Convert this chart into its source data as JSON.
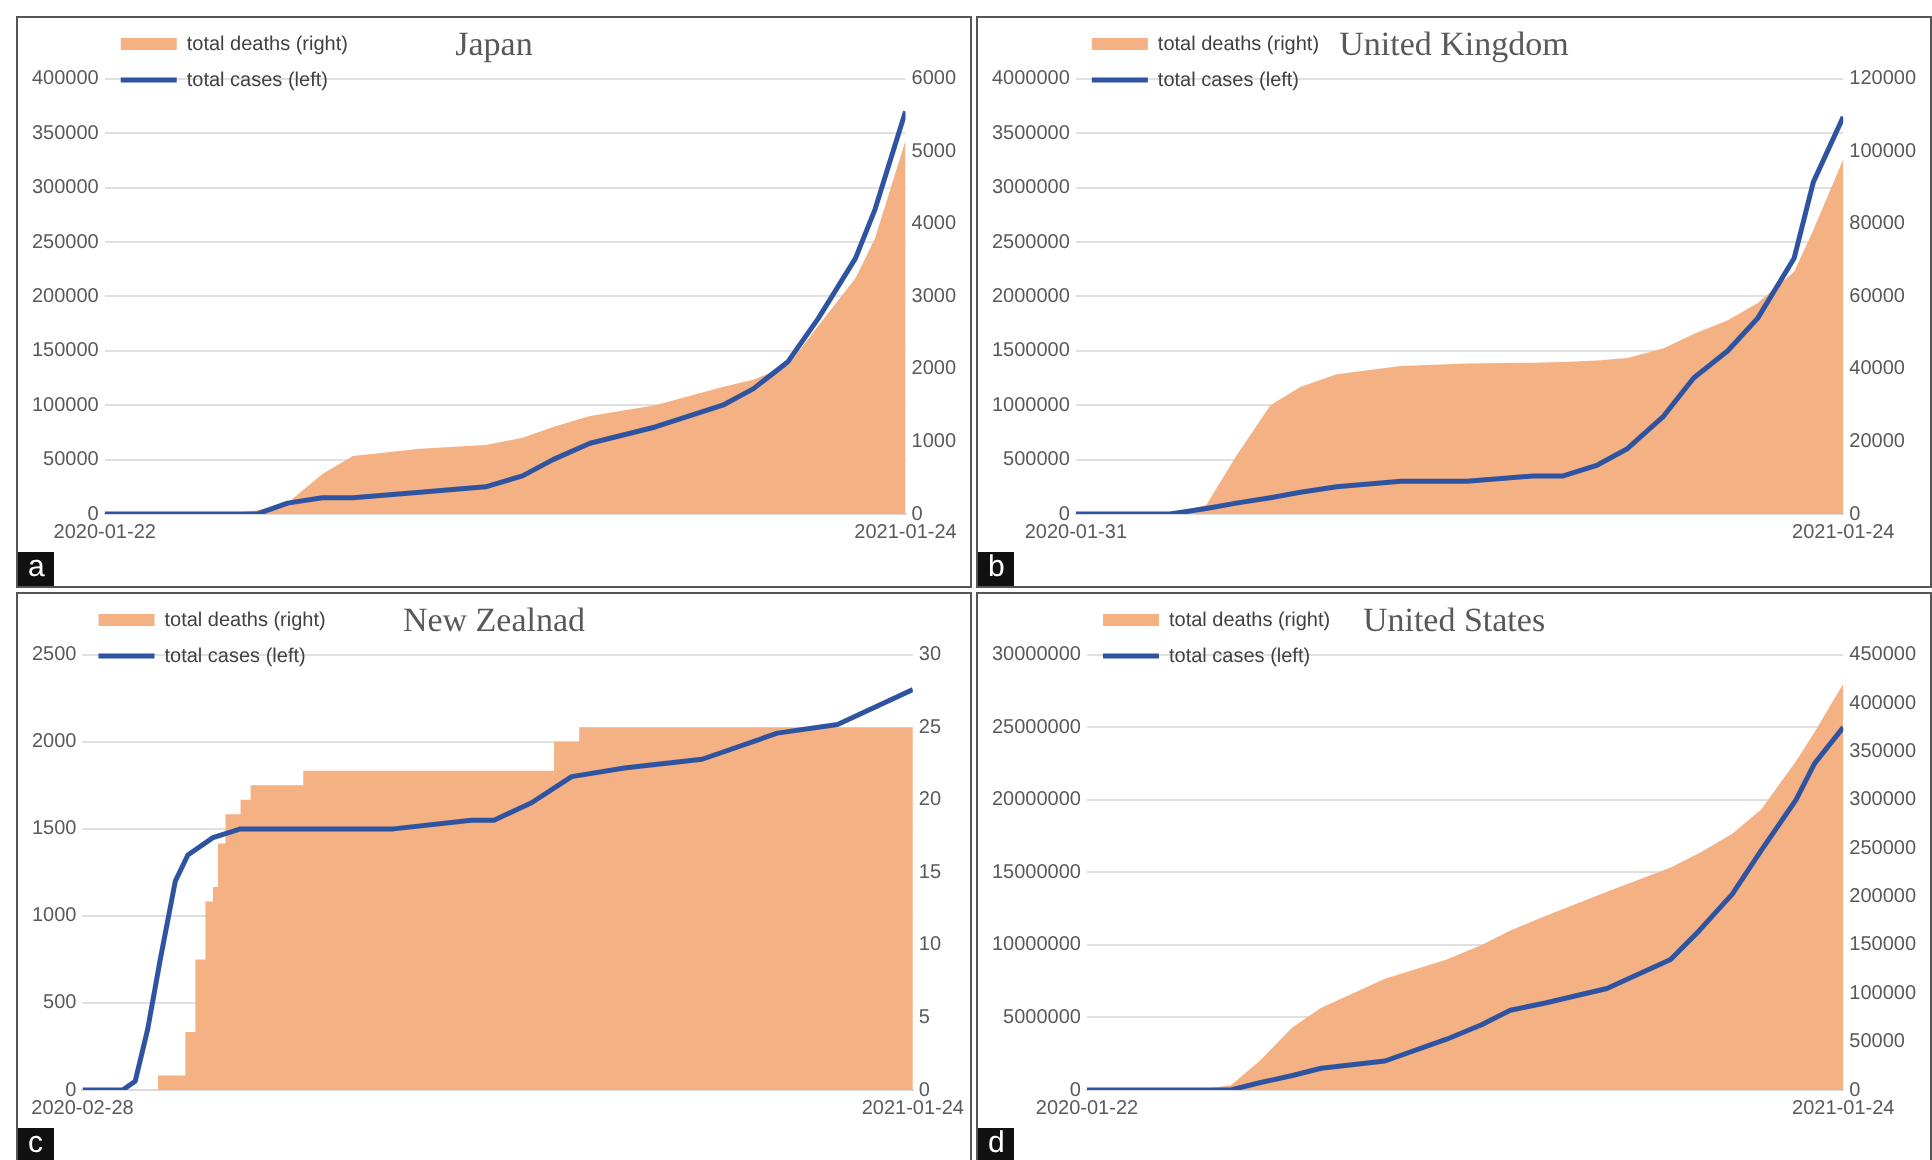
{
  "chart_data": [
    {
      "type": "line",
      "title": "Japan",
      "annotations": [
        "a"
      ],
      "legend": "top left",
      "grid": "y",
      "marker": "none",
      "line_style": "solid",
      "xlim": [
        "2020-01-22",
        "2021-01-24"
      ],
      "xticks": [
        "2020-01-22",
        "2021-01-24"
      ],
      "ylim": [
        0,
        400000
      ],
      "yticks": [
        0,
        50000,
        100000,
        150000,
        200000,
        250000,
        300000,
        350000,
        400000
      ],
      "y2lim": [
        0,
        6000
      ],
      "y2ticks": [
        0,
        1000,
        2000,
        3000,
        4000,
        5000,
        6000
      ],
      "x": [
        "2020-01-22",
        "2020-02-15",
        "2020-03-01",
        "2020-03-15",
        "2020-04-01",
        "2020-04-15",
        "2020-05-01",
        "2020-05-15",
        "2020-06-15",
        "2020-07-15",
        "2020-08-01",
        "2020-08-15",
        "2020-09-01",
        "2020-10-01",
        "2020-11-01",
        "2020-11-15",
        "2020-12-01",
        "2020-12-15",
        "2021-01-01",
        "2021-01-10",
        "2021-01-24"
      ],
      "series": [
        {
          "name": "total deaths (right)",
          "type": "area",
          "axis": "y2",
          "color": "#f4b183",
          "values": [
            0,
            0,
            0,
            0,
            50,
            150,
            550,
            800,
            900,
            950,
            1050,
            1200,
            1350,
            1500,
            1750,
            1850,
            2050,
            2600,
            3250,
            3800,
            5150
          ]
        },
        {
          "name": "total cases (left)",
          "type": "line",
          "color": "#2e54a1",
          "values": [
            0,
            0,
            0,
            0,
            0,
            10000,
            15000,
            15000,
            20000,
            25000,
            35000,
            50000,
            65000,
            80000,
            100000,
            115000,
            140000,
            180000,
            235000,
            280000,
            370000
          ]
        }
      ]
    },
    {
      "type": "line",
      "title": "United Kingdom",
      "annotations": [
        "b"
      ],
      "legend": "top left",
      "grid": "y",
      "marker": "none",
      "line_style": "solid",
      "xlim": [
        "2020-01-31",
        "2021-01-24"
      ],
      "xticks": [
        "2020-01-31",
        "2021-01-24"
      ],
      "ylim": [
        0,
        4000000
      ],
      "yticks": [
        0,
        500000,
        1000000,
        1500000,
        2000000,
        2500000,
        3000000,
        3500000,
        4000000
      ],
      "y2lim": [
        0,
        120000
      ],
      "y2ticks": [
        0,
        20000,
        40000,
        60000,
        80000,
        100000,
        120000
      ],
      "x": [
        "2020-01-31",
        "2020-03-01",
        "2020-03-15",
        "2020-04-01",
        "2020-04-15",
        "2020-05-01",
        "2020-05-15",
        "2020-06-01",
        "2020-07-01",
        "2020-08-01",
        "2020-09-01",
        "2020-09-15",
        "2020-10-01",
        "2020-10-15",
        "2020-11-01",
        "2020-11-15",
        "2020-12-01",
        "2020-12-15",
        "2021-01-01",
        "2021-01-10",
        "2021-01-24"
      ],
      "series": [
        {
          "name": "total deaths (right)",
          "type": "area",
          "axis": "y2",
          "color": "#f4b183",
          "values": [
            0,
            0,
            0,
            2500,
            16000,
            30000,
            35000,
            38500,
            40800,
            41500,
            41700,
            41900,
            42300,
            43000,
            45700,
            49600,
            53400,
            58200,
            66800,
            78300,
            97800
          ]
        },
        {
          "name": "total cases (left)",
          "type": "line",
          "color": "#2e54a1",
          "values": [
            0,
            0,
            0,
            50000,
            100000,
            150000,
            200000,
            250000,
            300000,
            300000,
            350000,
            350000,
            450000,
            600000,
            900000,
            1250000,
            1500000,
            1800000,
            2350000,
            3050000,
            3650000
          ]
        }
      ]
    },
    {
      "type": "line",
      "title": "New Zealnad",
      "annotations": [
        "c"
      ],
      "legend": "top left",
      "grid": "y",
      "marker": "none",
      "line_style": "solid",
      "xlim": [
        "2020-02-28",
        "2021-01-24"
      ],
      "xticks": [
        "2020-02-28",
        "2021-01-24"
      ],
      "ylim": [
        0,
        2500
      ],
      "yticks": [
        0,
        500,
        1000,
        1500,
        2000,
        2500
      ],
      "y2lim": [
        0,
        30
      ],
      "y2ticks": [
        0,
        5,
        10,
        15,
        20,
        25,
        30
      ],
      "series": [
        {
          "name": "total deaths (right)",
          "type": "area",
          "axis": "y2",
          "color": "#f4b183",
          "x": [
            "2020-03-29",
            "2020-03-29",
            "2020-04-09",
            "2020-04-09",
            "2020-04-13",
            "2020-04-13",
            "2020-04-17",
            "2020-04-17",
            "2020-04-20",
            "2020-04-20",
            "2020-04-22",
            "2020-04-22",
            "2020-04-25",
            "2020-04-25",
            "2020-05-01",
            "2020-05-01",
            "2020-05-05",
            "2020-05-05",
            "2020-05-26",
            "2020-05-26",
            "2020-09-03",
            "2020-09-03",
            "2020-09-13",
            "2020-09-13",
            "2021-01-24"
          ],
          "values": [
            0,
            1,
            1,
            4,
            4,
            9,
            9,
            13,
            13,
            14,
            14,
            17,
            17,
            19,
            19,
            20,
            20,
            21,
            21,
            22,
            22,
            24,
            24,
            25,
            25
          ]
        },
        {
          "name": "total cases (left)",
          "type": "line",
          "color": "#2e54a1",
          "x": [
            "2020-02-28",
            "2020-03-15",
            "2020-03-20",
            "2020-03-25",
            "2020-03-30",
            "2020-04-05",
            "2020-04-10",
            "2020-04-20",
            "2020-05-01",
            "2020-06-01",
            "2020-07-01",
            "2020-08-01",
            "2020-08-10",
            "2020-08-25",
            "2020-09-10",
            "2020-10-01",
            "2020-11-01",
            "2020-12-01",
            "2020-12-25",
            "2021-01-24"
          ],
          "values": [
            0,
            0,
            50,
            350,
            750,
            1200,
            1350,
            1450,
            1500,
            1500,
            1500,
            1550,
            1550,
            1650,
            1800,
            1850,
            1900,
            2050,
            2100,
            2300
          ]
        }
      ]
    },
    {
      "type": "line",
      "title": "United States",
      "annotations": [
        "d"
      ],
      "legend": "top left",
      "grid": "y",
      "marker": "none",
      "line_style": "solid",
      "xlim": [
        "2020-01-22",
        "2021-01-24"
      ],
      "xticks": [
        "2020-01-22",
        "2021-01-24"
      ],
      "ylim": [
        0,
        30000000
      ],
      "yticks": [
        0,
        5000000,
        10000000,
        15000000,
        20000000,
        25000000,
        30000000
      ],
      "y2lim": [
        0,
        450000
      ],
      "y2ticks": [
        0,
        50000,
        100000,
        150000,
        200000,
        250000,
        300000,
        350000,
        400000,
        450000
      ],
      "x": [
        "2020-01-22",
        "2020-02-15",
        "2020-03-01",
        "2020-03-15",
        "2020-04-01",
        "2020-04-15",
        "2020-05-01",
        "2020-05-15",
        "2020-06-15",
        "2020-07-15",
        "2020-08-01",
        "2020-08-15",
        "2020-09-01",
        "2020-10-01",
        "2020-11-01",
        "2020-11-15",
        "2020-12-01",
        "2020-12-15",
        "2021-01-01",
        "2021-01-10",
        "2021-01-24"
      ],
      "series": [
        {
          "name": "total deaths (right)",
          "type": "area",
          "axis": "y2",
          "color": "#f4b183",
          "values": [
            0,
            0,
            0,
            0,
            5000,
            30000,
            65000,
            85000,
            115000,
            135000,
            150000,
            165000,
            180000,
            205000,
            230000,
            245000,
            265000,
            290000,
            340000,
            370000,
            420000
          ]
        },
        {
          "name": "total cases (left)",
          "type": "line",
          "color": "#2e54a1",
          "values": [
            0,
            0,
            0,
            0,
            0,
            500000,
            1000000,
            1500000,
            2000000,
            3500000,
            4500000,
            5500000,
            6000000,
            7000000,
            9000000,
            11000000,
            13500000,
            16500000,
            20000000,
            22500000,
            25000000
          ]
        }
      ]
    }
  ]
}
